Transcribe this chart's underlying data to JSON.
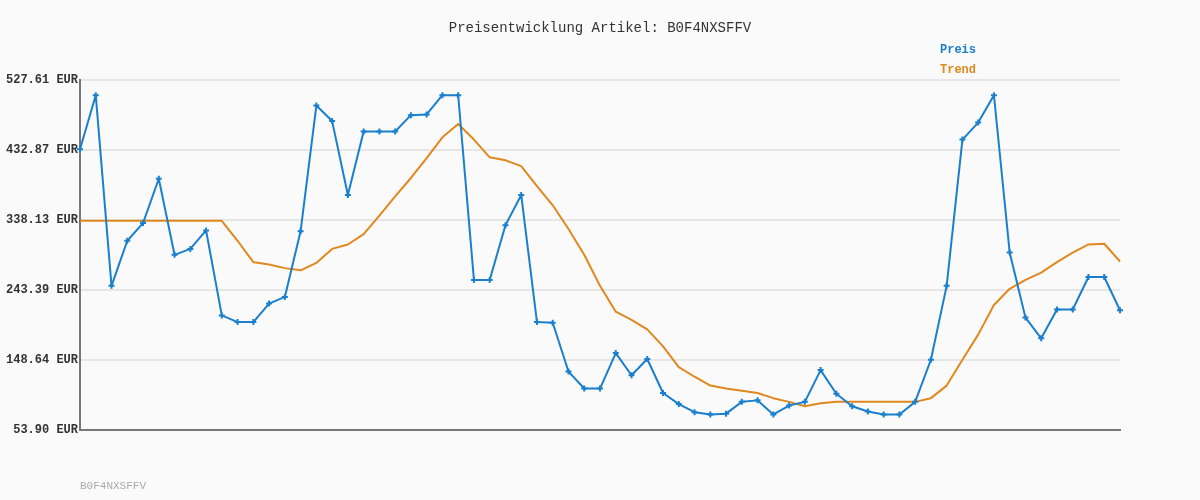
{
  "chart_data": {
    "type": "line",
    "title": "Preisentwicklung Artikel: B0F4NXSFFV",
    "categories": [
      null,
      null,
      null,
      null,
      null,
      null,
      null,
      null,
      null,
      null,
      null,
      null,
      null,
      null,
      null,
      null,
      null,
      null,
      null,
      null,
      null,
      null,
      null,
      null,
      null,
      null,
      null,
      null,
      null,
      null,
      null,
      null,
      null,
      null,
      null,
      null,
      null,
      null,
      null,
      null,
      null,
      null,
      null,
      null,
      null,
      null,
      null,
      null,
      null,
      null,
      null,
      null,
      null,
      null,
      null,
      null,
      null,
      null,
      null,
      null,
      null,
      null,
      null,
      null,
      null,
      null,
      null
    ],
    "series": [
      {
        "name": "Preis",
        "color": "#1a7fcc",
        "marker": "cross",
        "values": [
          434,
          507,
          249,
          310,
          334,
          394,
          291,
          299,
          324,
          209,
          200,
          200,
          225,
          234,
          323,
          493,
          472,
          372,
          458,
          458,
          458,
          480,
          481,
          507,
          507,
          257,
          257,
          331,
          372,
          200,
          199,
          133,
          110,
          110,
          158,
          128,
          150,
          104,
          89,
          78,
          75,
          76,
          92,
          94,
          75,
          87,
          92,
          135,
          103,
          86,
          79,
          75,
          75,
          92,
          149,
          249,
          447,
          470,
          507,
          294,
          206,
          178,
          217,
          217,
          261,
          261,
          216
        ]
      },
      {
        "name": "Trend",
        "color": "#e0881e",
        "marker": "none",
        "values": [
          337,
          337,
          337,
          337,
          337,
          337,
          337,
          337,
          337,
          337,
          310,
          281,
          278,
          273,
          270,
          280,
          299,
          305,
          319,
          344,
          370,
          395,
          422,
          450,
          468,
          447,
          423,
          419,
          411,
          384,
          358,
          326,
          291,
          249,
          214,
          203,
          190,
          167,
          139,
          126,
          114,
          110,
          107,
          104,
          97,
          92,
          86,
          90,
          92,
          92,
          92,
          92,
          92,
          92,
          97,
          114,
          149,
          183,
          223,
          245,
          257,
          267,
          281,
          294,
          305,
          306,
          282
        ]
      }
    ],
    "ylim": [
      53.9,
      527.61
    ],
    "yticks": [
      {
        "value": 53.9,
        "label": "53.90 EUR"
      },
      {
        "value": 148.64,
        "label": "148.64 EUR"
      },
      {
        "value": 243.39,
        "label": "243.39 EUR"
      },
      {
        "value": 338.13,
        "label": "338.13 EUR"
      },
      {
        "value": 432.87,
        "label": "432.87 EUR"
      },
      {
        "value": 527.61,
        "label": "527.61 EUR"
      }
    ],
    "grid": "y",
    "legend": "top right",
    "tick_labels": "y",
    "annotations": [
      "B0F4NXSFFV"
    ]
  }
}
